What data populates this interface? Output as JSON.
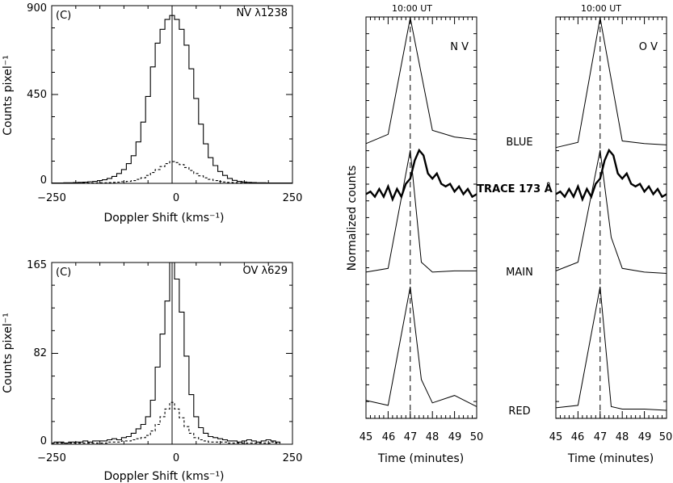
{
  "chart_data": [
    {
      "type": "line",
      "id": "spectrum-nv",
      "panel_label": "(C)",
      "annotation": "NV λ1238",
      "xlabel": "Doppler Shift (kms⁻¹)",
      "ylabel": "Counts pixel⁻¹",
      "xlim": [
        -250,
        250
      ],
      "ylim": [
        0,
        900
      ],
      "xticks": [
        "−250",
        "0",
        "250"
      ],
      "yticks": [
        "0",
        "450",
        "900"
      ],
      "step": true,
      "series": [
        {
          "style": "solid",
          "x": [
            -250,
            -240,
            -230,
            -220,
            -210,
            -200,
            -190,
            -180,
            -170,
            -160,
            -150,
            -140,
            -130,
            -120,
            -110,
            -100,
            -90,
            -80,
            -70,
            -60,
            -50,
            -40,
            -30,
            -20,
            -10,
            0,
            10,
            20,
            30,
            40,
            50,
            60,
            70,
            80,
            90,
            100,
            110,
            120,
            130,
            140,
            150,
            160,
            170,
            180,
            190,
            200,
            210,
            220,
            230,
            240,
            250
          ],
          "y": [
            2,
            2,
            2,
            3,
            3,
            4,
            5,
            6,
            8,
            10,
            14,
            18,
            25,
            35,
            50,
            70,
            100,
            140,
            210,
            310,
            440,
            590,
            710,
            780,
            830,
            850,
            830,
            780,
            700,
            580,
            430,
            300,
            200,
            130,
            90,
            60,
            40,
            25,
            15,
            10,
            7,
            5,
            4,
            3,
            3,
            2,
            2,
            2,
            2,
            2,
            2
          ]
        },
        {
          "style": "dotted",
          "x": [
            -250,
            -240,
            -230,
            -220,
            -210,
            -200,
            -190,
            -180,
            -170,
            -160,
            -150,
            -140,
            -130,
            -120,
            -110,
            -100,
            -90,
            -80,
            -70,
            -60,
            -50,
            -40,
            -30,
            -20,
            -10,
            0,
            10,
            20,
            30,
            40,
            50,
            60,
            70,
            80,
            90,
            100,
            110,
            120,
            130,
            140,
            150,
            160,
            170,
            180,
            190,
            200,
            210,
            220,
            230,
            240,
            250
          ],
          "y": [
            1,
            1,
            1,
            1,
            1,
            1,
            1,
            2,
            2,
            2,
            3,
            3,
            4,
            5,
            6,
            8,
            10,
            14,
            20,
            28,
            40,
            55,
            70,
            85,
            100,
            110,
            105,
            95,
            80,
            65,
            50,
            38,
            28,
            20,
            14,
            10,
            7,
            5,
            4,
            3,
            2,
            2,
            2,
            1,
            1,
            1,
            1,
            1,
            1,
            1,
            1
          ]
        }
      ]
    },
    {
      "type": "line",
      "id": "spectrum-ov",
      "panel_label": "(C)",
      "annotation": "OV λ629",
      "xlabel": "Doppler Shift (kms⁻¹)",
      "ylabel": "Counts pixel⁻¹",
      "xlim": [
        -250,
        250
      ],
      "ylim": [
        0,
        165
      ],
      "xticks": [
        "−250",
        "0",
        "250"
      ],
      "yticks": [
        "0",
        "82",
        "165"
      ],
      "step": true,
      "series": [
        {
          "style": "solid",
          "x": [
            -250,
            -240,
            -230,
            -220,
            -210,
            -200,
            -190,
            -180,
            -170,
            -160,
            -150,
            -140,
            -130,
            -120,
            -110,
            -100,
            -90,
            -80,
            -70,
            -60,
            -50,
            -40,
            -30,
            -20,
            -10,
            0,
            10,
            20,
            30,
            40,
            50,
            60,
            70,
            80,
            90,
            100,
            110,
            120,
            130,
            140,
            150,
            160,
            170,
            180,
            190,
            200,
            210,
            220
          ],
          "y": [
            1,
            2,
            2,
            1,
            2,
            2,
            2,
            3,
            2,
            3,
            3,
            3,
            4,
            5,
            4,
            6,
            7,
            10,
            14,
            18,
            25,
            40,
            70,
            100,
            130,
            165,
            150,
            120,
            80,
            45,
            25,
            15,
            10,
            7,
            6,
            5,
            4,
            3,
            3,
            2,
            3,
            4,
            3,
            2,
            3,
            4,
            3,
            2
          ]
        },
        {
          "style": "dotted",
          "x": [
            -250,
            -240,
            -230,
            -220,
            -210,
            -200,
            -190,
            -180,
            -170,
            -160,
            -150,
            -140,
            -130,
            -120,
            -110,
            -100,
            -90,
            -80,
            -70,
            -60,
            -50,
            -40,
            -30,
            -20,
            -10,
            0,
            10,
            20,
            30,
            40,
            50,
            60,
            70,
            80,
            90,
            100,
            110,
            120,
            130,
            140,
            150,
            160,
            170,
            180,
            190,
            200,
            210,
            220
          ],
          "y": [
            1,
            1,
            1,
            1,
            1,
            1,
            1,
            1,
            1,
            1,
            1,
            1,
            2,
            2,
            2,
            3,
            3,
            4,
            5,
            6,
            8,
            12,
            18,
            25,
            32,
            38,
            32,
            24,
            16,
            10,
            6,
            4,
            3,
            2,
            2,
            2,
            2,
            1,
            1,
            1,
            1,
            1,
            1,
            1,
            1,
            1,
            2,
            1
          ]
        }
      ]
    },
    {
      "type": "line",
      "id": "lightcurve-nv",
      "title": "10:00 UT",
      "annotation": "N V",
      "ylabel": "Normalized counts",
      "xlabel": "Time (minutes)",
      "xlim": [
        45,
        50
      ],
      "xticks": [
        "45",
        "46",
        "47",
        "48",
        "49",
        "50"
      ],
      "marker_x": 47,
      "stack_labels": [
        "BLUE",
        "TRACE 173 Å",
        "MAIN",
        "RED"
      ],
      "curves": [
        {
          "label": "BLUE",
          "x": [
            45,
            46,
            47,
            48,
            49,
            50
          ],
          "y": [
            0.05,
            0.12,
            1,
            0.15,
            0.1,
            0.08
          ]
        },
        {
          "label": "TRACE 173 Å",
          "x": [
            45,
            45.2,
            45.4,
            45.6,
            45.8,
            46,
            46.2,
            46.4,
            46.6,
            46.8,
            47,
            47.2,
            47.4,
            47.6,
            47.8,
            48,
            48.2,
            48.4,
            48.6,
            48.8,
            49,
            49.2,
            49.4,
            49.6,
            49.8,
            50
          ],
          "y": [
            0.15,
            0.2,
            0.1,
            0.25,
            0.1,
            0.3,
            0.05,
            0.25,
            0.1,
            0.35,
            0.45,
            0.8,
            1,
            0.9,
            0.55,
            0.45,
            0.55,
            0.35,
            0.3,
            0.35,
            0.2,
            0.3,
            0.15,
            0.25,
            0.1,
            0.15
          ]
        },
        {
          "label": "MAIN",
          "x": [
            45,
            46,
            47,
            47.5,
            48,
            49,
            50
          ],
          "y": [
            0.02,
            0.05,
            1,
            0.1,
            0.02,
            0.03,
            0.03
          ]
        },
        {
          "label": "RED",
          "x": [
            45,
            46,
            47,
            47.5,
            48,
            49,
            50
          ],
          "y": [
            0.08,
            0.04,
            1,
            0.25,
            0.06,
            0.12,
            0.03
          ]
        }
      ]
    },
    {
      "type": "line",
      "id": "lightcurve-ov",
      "title": "10:00 UT",
      "annotation": "O V",
      "xlabel": "Time (minutes)",
      "xlim": [
        45,
        50
      ],
      "xticks": [
        "45",
        "46",
        "47",
        "48",
        "49",
        "50"
      ],
      "marker_x": 47,
      "curves": [
        {
          "label": "BLUE",
          "x": [
            45,
            46,
            47,
            48,
            49,
            50
          ],
          "y": [
            0.02,
            0.06,
            1,
            0.07,
            0.05,
            0.04
          ]
        },
        {
          "label": "TRACE 173 Å",
          "x": [
            45,
            45.2,
            45.4,
            45.6,
            45.8,
            46,
            46.2,
            46.4,
            46.6,
            46.8,
            47,
            47.2,
            47.4,
            47.6,
            47.8,
            48,
            48.2,
            48.4,
            48.6,
            48.8,
            49,
            49.2,
            49.4,
            49.6,
            49.8,
            50
          ],
          "y": [
            0.15,
            0.2,
            0.1,
            0.25,
            0.1,
            0.3,
            0.05,
            0.25,
            0.1,
            0.35,
            0.45,
            0.8,
            1,
            0.9,
            0.55,
            0.45,
            0.55,
            0.35,
            0.3,
            0.35,
            0.2,
            0.3,
            0.15,
            0.25,
            0.1,
            0.15
          ]
        },
        {
          "label": "MAIN",
          "x": [
            45,
            46,
            47,
            47.5,
            48,
            49,
            50
          ],
          "y": [
            0.03,
            0.1,
            1,
            0.3,
            0.05,
            0.02,
            0.01
          ]
        },
        {
          "label": "RED",
          "x": [
            45,
            46,
            47,
            47.5,
            48,
            49,
            50
          ],
          "y": [
            0.02,
            0.04,
            1,
            0.03,
            0.01,
            0.01,
            0.0
          ]
        }
      ]
    }
  ]
}
